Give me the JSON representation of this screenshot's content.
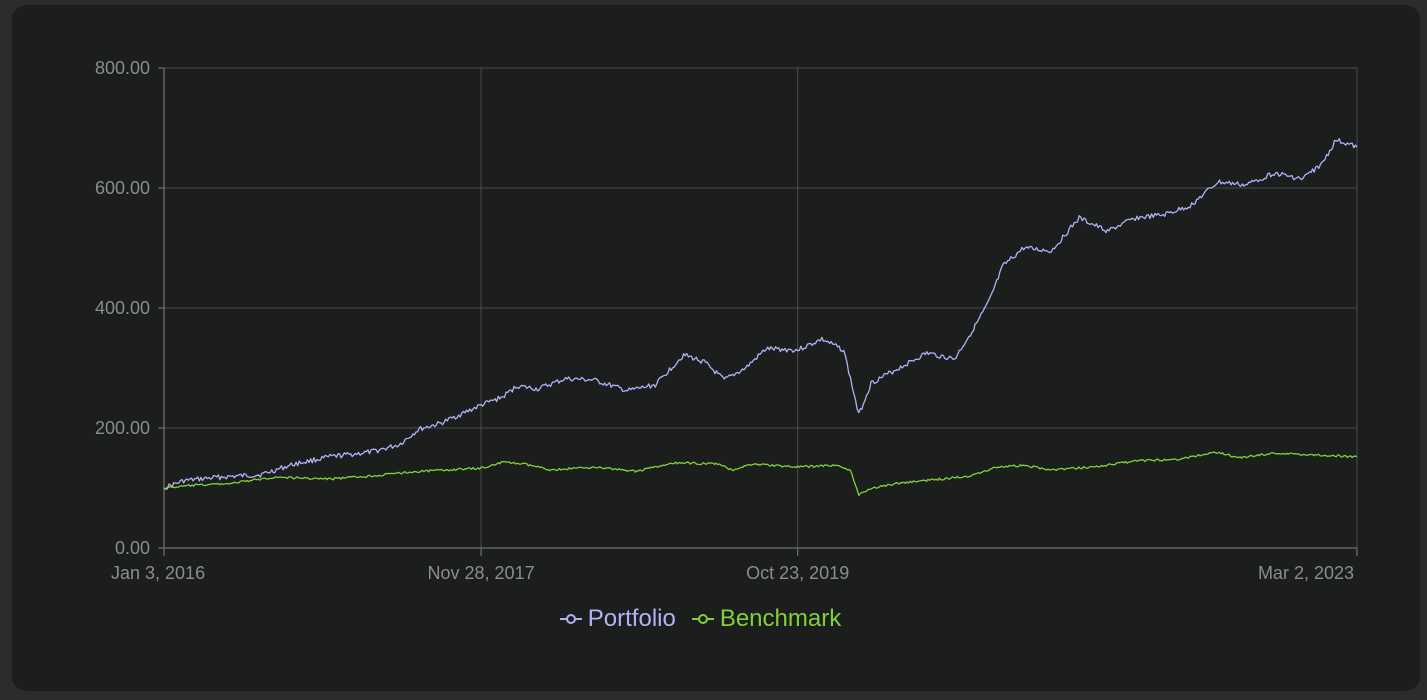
{
  "chart_data": {
    "type": "line",
    "title": "",
    "xlabel": "",
    "ylabel": "",
    "ylim": [
      0,
      800
    ],
    "yticks": [
      0,
      200,
      400,
      600,
      800
    ],
    "ytick_labels": [
      "0.00",
      "200.00",
      "400.00",
      "600.00",
      "800.00"
    ],
    "xlim": [
      "2016-01-03",
      "2023-03-02"
    ],
    "xticks": [
      "2016-01-03",
      "2017-11-28",
      "2019-10-23",
      "2023-03-02"
    ],
    "xtick_labels": [
      "Jan 3, 2016",
      "Nov 28, 2017",
      "Oct 23, 2019",
      "Mar 2, 2023"
    ],
    "grid": true,
    "legend_position": "bottom-center",
    "series": [
      {
        "name": "Portfolio",
        "color": "#b4b0f4",
        "points": [
          [
            "2016-01-03",
            100
          ],
          [
            "2016-02-15",
            112
          ],
          [
            "2016-05-01",
            118
          ],
          [
            "2016-08-01",
            122
          ],
          [
            "2016-10-15",
            140
          ],
          [
            "2017-01-01",
            152
          ],
          [
            "2017-04-01",
            160
          ],
          [
            "2017-06-01",
            172
          ],
          [
            "2017-07-15",
            198
          ],
          [
            "2017-09-01",
            208
          ],
          [
            "2017-11-28",
            238
          ],
          [
            "2018-01-15",
            252
          ],
          [
            "2018-02-15",
            270
          ],
          [
            "2018-04-01",
            265
          ],
          [
            "2018-06-01",
            282
          ],
          [
            "2018-08-01",
            280
          ],
          [
            "2018-10-15",
            262
          ],
          [
            "2018-12-15",
            272
          ],
          [
            "2019-02-15",
            322
          ],
          [
            "2019-04-01",
            310
          ],
          [
            "2019-05-15",
            280
          ],
          [
            "2019-07-01",
            300
          ],
          [
            "2019-08-15",
            332
          ],
          [
            "2019-10-23",
            330
          ],
          [
            "2019-12-15",
            348
          ],
          [
            "2020-02-01",
            330
          ],
          [
            "2020-03-05",
            222
          ],
          [
            "2020-04-01",
            275
          ],
          [
            "2020-06-01",
            300
          ],
          [
            "2020-08-01",
            325
          ],
          [
            "2020-10-01",
            315
          ],
          [
            "2020-11-15",
            370
          ],
          [
            "2020-12-15",
            410
          ],
          [
            "2021-01-15",
            470
          ],
          [
            "2021-03-01",
            500
          ],
          [
            "2021-05-01",
            495
          ],
          [
            "2021-07-01",
            550
          ],
          [
            "2021-09-01",
            528
          ],
          [
            "2021-11-01",
            550
          ],
          [
            "2022-01-01",
            555
          ],
          [
            "2022-03-01",
            570
          ],
          [
            "2022-05-01",
            610
          ],
          [
            "2022-07-01",
            605
          ],
          [
            "2022-09-01",
            625
          ],
          [
            "2022-11-01",
            615
          ],
          [
            "2022-12-15",
            640
          ],
          [
            "2023-01-15",
            680
          ],
          [
            "2023-03-02",
            668
          ]
        ]
      },
      {
        "name": "Benchmark",
        "color": "#7fd13b",
        "points": [
          [
            "2016-01-03",
            100
          ],
          [
            "2016-03-01",
            104
          ],
          [
            "2016-06-01",
            108
          ],
          [
            "2016-09-01",
            118
          ],
          [
            "2017-01-01",
            115
          ],
          [
            "2017-04-01",
            120
          ],
          [
            "2017-07-01",
            127
          ],
          [
            "2017-11-28",
            133
          ],
          [
            "2018-01-15",
            143
          ],
          [
            "2018-03-01",
            140
          ],
          [
            "2018-05-01",
            130
          ],
          [
            "2018-08-01",
            135
          ],
          [
            "2018-11-01",
            128
          ],
          [
            "2019-02-01",
            142
          ],
          [
            "2019-05-01",
            140
          ],
          [
            "2019-06-01",
            130
          ],
          [
            "2019-07-15",
            140
          ],
          [
            "2019-10-23",
            135
          ],
          [
            "2020-01-15",
            138
          ],
          [
            "2020-02-15",
            130
          ],
          [
            "2020-03-05",
            88
          ],
          [
            "2020-04-01",
            100
          ],
          [
            "2020-06-01",
            108
          ],
          [
            "2020-09-01",
            115
          ],
          [
            "2020-11-01",
            120
          ],
          [
            "2021-01-01",
            135
          ],
          [
            "2021-03-01",
            138
          ],
          [
            "2021-05-01",
            130
          ],
          [
            "2021-08-01",
            135
          ],
          [
            "2021-11-01",
            145
          ],
          [
            "2022-02-01",
            148
          ],
          [
            "2022-05-01",
            160
          ],
          [
            "2022-06-15",
            150
          ],
          [
            "2022-09-01",
            158
          ],
          [
            "2022-12-01",
            155
          ],
          [
            "2023-03-02",
            152
          ]
        ]
      }
    ]
  }
}
